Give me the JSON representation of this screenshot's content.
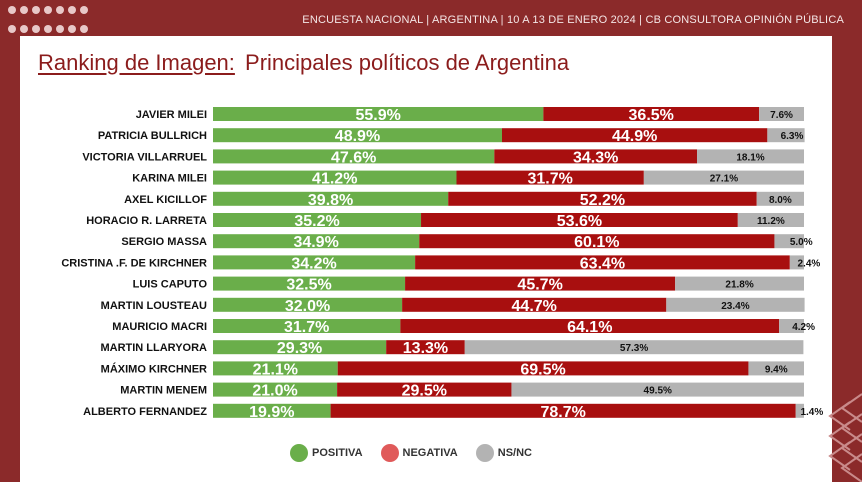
{
  "header": {
    "subtitle": "ENCUESTA NACIONAL  |  ARGENTINA  | 10 A 13 DE ENERO 2024 | CB CONSULTORA OPINIÓN PÚBLICA"
  },
  "title": {
    "part1": "Ranking de Imagen:",
    "part2": "Principales políticos de Argentina"
  },
  "colors": {
    "positiva": "#6aae4a",
    "negativa": "#a80f0f",
    "nsnc": "#b3b3b3",
    "legend_negativa": "#e05a5a",
    "background": "#8b2a2a"
  },
  "chart_data": {
    "type": "bar",
    "orientation": "horizontal-stacked-100",
    "categories": [
      "JAVIER MILEI",
      "PATRICIA BULLRICH",
      "VICTORIA VILLARRUEL",
      "KARINA MILEI",
      "AXEL KICILLOF",
      "HORACIO R. LARRETA",
      "SERGIO MASSA",
      "CRISTINA .F. DE KIRCHNER",
      "LUIS CAPUTO",
      "MARTIN LOUSTEAU",
      "MAURICIO MACRI",
      "MARTIN LLARYORA",
      "MÁXIMO KIRCHNER",
      "MARTIN MENEM",
      "ALBERTO FERNANDEZ"
    ],
    "series": [
      {
        "name": "POSITIVA",
        "values": [
          55.9,
          48.9,
          47.6,
          41.2,
          39.8,
          35.2,
          34.9,
          34.2,
          32.5,
          32.0,
          31.7,
          29.3,
          21.1,
          21.0,
          19.9
        ]
      },
      {
        "name": "NEGATIVA",
        "values": [
          36.5,
          44.9,
          34.3,
          31.7,
          52.2,
          53.6,
          60.1,
          63.4,
          45.7,
          44.7,
          64.1,
          13.3,
          69.5,
          29.5,
          78.7
        ]
      },
      {
        "name": "NS/NC",
        "values": [
          7.6,
          6.3,
          18.1,
          27.1,
          8.0,
          11.2,
          5.0,
          2.4,
          21.8,
          23.4,
          4.2,
          57.3,
          9.4,
          49.5,
          1.4
        ]
      }
    ],
    "labels": {
      "POSITIVA": [
        "55.9%",
        "48.9%",
        "47.6%",
        "41.2%",
        "39.8%",
        "35.2%",
        "34.9%",
        "34.2%",
        "32.5%",
        "32.0%",
        "31.7%",
        "29.3%",
        "21.1%",
        "21.0%",
        "19.9%"
      ],
      "NEGATIVA": [
        "36.5%",
        "44.9%",
        "34.3%",
        "31.7%",
        "52.2%",
        "53.6%",
        "60.1%",
        "63.4%",
        "45.7%",
        "44.7%",
        "64.1%",
        "13.3%",
        "69.5%",
        "29.5%",
        "78.7%"
      ],
      "NS/NC": [
        "7.6%",
        "6.3%",
        "18.1%",
        "27.1%",
        "8.0%",
        "11.2%",
        "5.0%",
        "2.4%",
        "21.8%",
        "23.4%",
        "4.2%",
        "57.3%",
        "9.4%",
        "49.5%",
        "1.4%"
      ]
    },
    "xlim": [
      0,
      100
    ],
    "grid": false,
    "legend_position": "bottom"
  },
  "legend": [
    {
      "label": "POSITIVA",
      "color_key": "positiva"
    },
    {
      "label": "NEGATIVA",
      "color_key": "legend_negativa"
    },
    {
      "label": "NS/NC",
      "color_key": "nsnc"
    }
  ]
}
